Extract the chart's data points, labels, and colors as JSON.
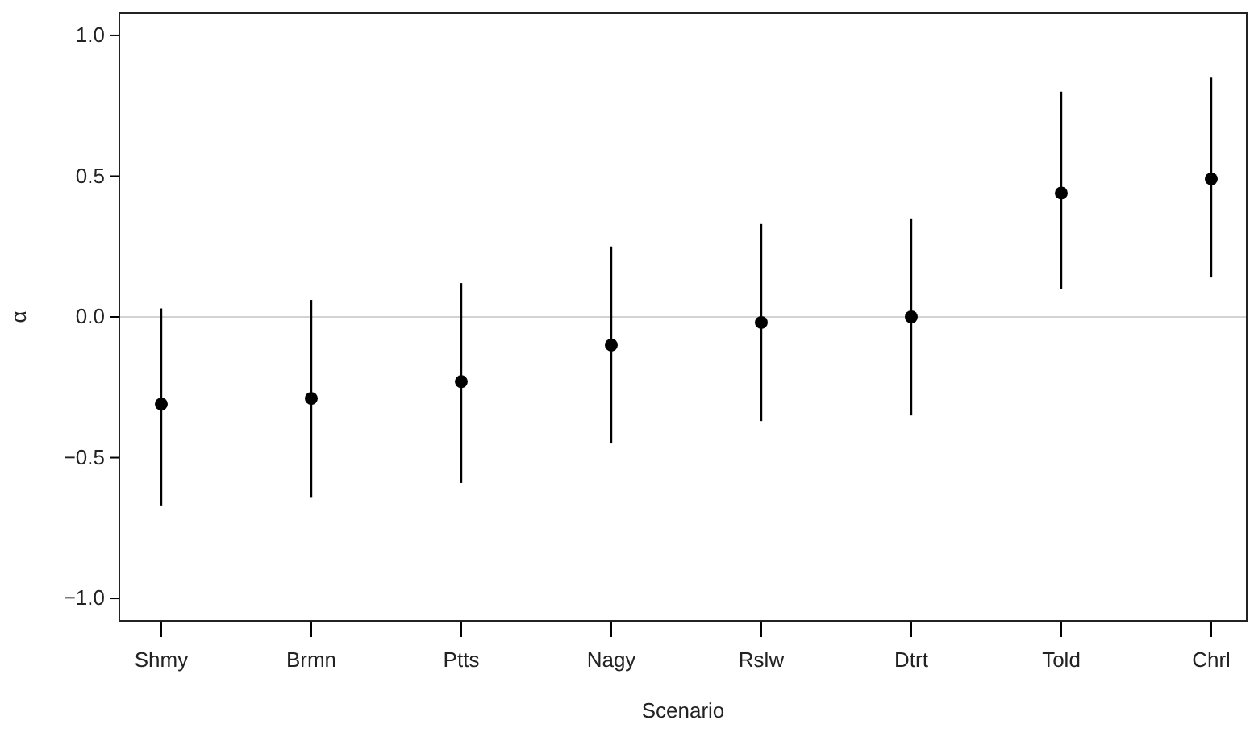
{
  "chart_data": {
    "type": "scatter",
    "xlabel": "Scenario",
    "ylabel": "α",
    "categories": [
      "Shmy",
      "Brmn",
      "Ptts",
      "Nagy",
      "Rslw",
      "Dtrt",
      "Told",
      "Chrl"
    ],
    "values": [
      -0.31,
      -0.29,
      -0.23,
      -0.1,
      -0.02,
      0.0,
      0.44,
      0.49
    ],
    "errors": [
      [
        -0.67,
        0.03
      ],
      [
        -0.64,
        0.06
      ],
      [
        -0.59,
        0.12
      ],
      [
        -0.45,
        0.25
      ],
      [
        -0.37,
        0.33
      ],
      [
        -0.35,
        0.35
      ],
      [
        0.1,
        0.8
      ],
      [
        0.14,
        0.85
      ]
    ],
    "color": "#000000",
    "marker": "circle",
    "ylim": [
      -1.08,
      1.08
    ],
    "yticks": [
      {
        "value": -1,
        "label": "−1.0"
      },
      {
        "value": -0.5,
        "label": "−0.5"
      },
      {
        "value": 0,
        "label": "0.0"
      },
      {
        "value": 0.5,
        "label": "0.5"
      },
      {
        "value": 1,
        "label": "1.0"
      }
    ],
    "ref_lines": [
      {
        "axis": "y",
        "value": 0,
        "color": "#d3d3d3"
      }
    ]
  }
}
